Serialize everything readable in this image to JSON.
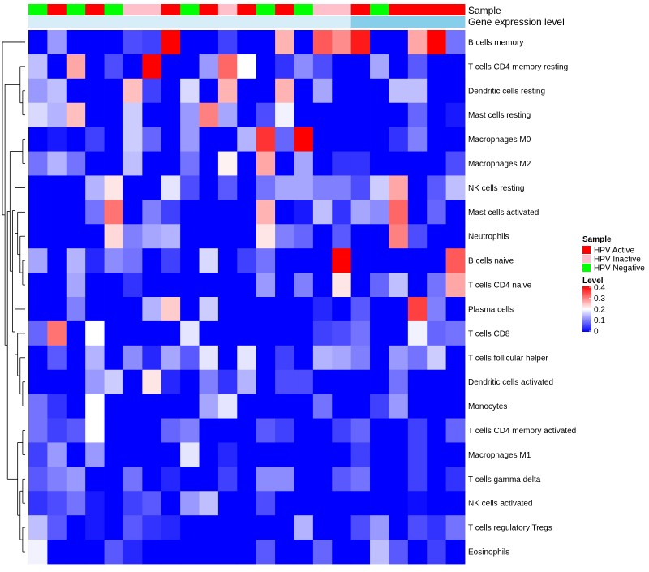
{
  "chart_data": {
    "type": "heatmap",
    "title": "",
    "annotation_labels": {
      "sample": "Sample",
      "gene": "Gene expression level"
    },
    "rows": [
      "B cells memory",
      "T cells CD4 memory resting",
      "Dendritic cells resting",
      "Mast cells resting",
      "Macrophages M0",
      "Macrophages M2",
      "NK cells resting",
      "Mast cells activated",
      "Neutrophils",
      "B cells naive",
      "T cells CD4 naive",
      "Plasma cells",
      "T cells CD8",
      "T cells follicular helper",
      "Dendritic cells activated",
      "Monocytes",
      "T cells CD4 memory activated",
      "Macrophages M1",
      "T cells gamma delta",
      "NK cells activated",
      "T cells regulatory  Tregs",
      "Eosinophils"
    ],
    "sample_groups": [
      "HPV Negative",
      "HPV Active",
      "HPV Negative",
      "HPV Active",
      "HPV Negative",
      "HPV Inactive",
      "HPV Inactive",
      "HPV Active",
      "HPV Negative",
      "HPV Active",
      "HPV Inactive",
      "HPV Active",
      "HPV Negative",
      "HPV Active",
      "HPV Negative",
      "HPV Inactive",
      "HPV Inactive",
      "HPV Active",
      "HPV Negative",
      "HPV Active",
      "HPV Active",
      "HPV Active",
      "HPV Active"
    ],
    "gene_expression_level": [
      0,
      0,
      0,
      0,
      0,
      0,
      0,
      0,
      0,
      0,
      0,
      0,
      0,
      0,
      0,
      0,
      0,
      1,
      1,
      1,
      1,
      1,
      1
    ],
    "legend": {
      "sample_title": "Sample",
      "sample_entries": [
        {
          "label": "HPV Active",
          "color": "#ff0000"
        },
        {
          "label": "HPV Inactive",
          "color": "#ffc0cb"
        },
        {
          "label": "HPV Negative",
          "color": "#00ff00"
        }
      ],
      "level_title": "Level",
      "level_ticks": [
        "0.4",
        "0.3",
        "0.2",
        "0.1",
        "0"
      ],
      "level_tick_values": [
        0.4,
        0.3,
        0.2,
        0.1,
        0
      ]
    },
    "color_scale": {
      "low": "#0000ff",
      "mid": "#ffffff",
      "high": "#ff0000",
      "min": 0,
      "mid_value": 0.2,
      "max": 0.4
    },
    "gene_colors": {
      "low": "#d7eef8",
      "high": "#87ceeb"
    },
    "values": [
      [
        0,
        0.12,
        0,
        0,
        0,
        0.06,
        0.05,
        0.4,
        0,
        0,
        0.05,
        0,
        0,
        0.26,
        0,
        0.33,
        0.29,
        0.38,
        0,
        0,
        0.27,
        0.4,
        0.09
      ],
      [
        0.15,
        0,
        0.27,
        0,
        0.06,
        0,
        0.4,
        0,
        0,
        0.12,
        0.32,
        0.2,
        0,
        0.04,
        0.11,
        0.06,
        0,
        0,
        0.13,
        0,
        0.07,
        0,
        0
      ],
      [
        0.12,
        0.15,
        0,
        0,
        0,
        0.25,
        0.05,
        0,
        0.17,
        0,
        0.26,
        0,
        0,
        0.26,
        0,
        0.13,
        0,
        0,
        0,
        0.15,
        0.15,
        0,
        0
      ],
      [
        0.17,
        0.14,
        0.25,
        0,
        0,
        0.16,
        0,
        0,
        0.12,
        0.3,
        0.13,
        0,
        0.06,
        0.19,
        0,
        0,
        0,
        0,
        0,
        0,
        0.08,
        0,
        0.02
      ],
      [
        0,
        0.02,
        0,
        0.05,
        0,
        0.16,
        0.08,
        0,
        0.12,
        0,
        0,
        0.14,
        0.36,
        0.08,
        0.4,
        0,
        0,
        0,
        0,
        0.04,
        0.1,
        0,
        0
      ],
      [
        0.09,
        0.14,
        0.09,
        0,
        0,
        0.15,
        0,
        0,
        0.09,
        0,
        0.21,
        0,
        0.27,
        0,
        0.13,
        0,
        0.04,
        0.04,
        0,
        0,
        0,
        0,
        0.06
      ],
      [
        0,
        0,
        0,
        0.14,
        0.22,
        0,
        0,
        0.18,
        0.06,
        0,
        0.07,
        0,
        0.09,
        0.13,
        0.13,
        0.1,
        0.1,
        0.06,
        0.16,
        0.27,
        0,
        0.07,
        0.15
      ],
      [
        0,
        0,
        0,
        0.09,
        0.31,
        0,
        0.1,
        0.05,
        0,
        0,
        0,
        0,
        0.26,
        0,
        0.02,
        0.15,
        0.04,
        0.13,
        0.11,
        0.32,
        0,
        0.08,
        0
      ],
      [
        0,
        0,
        0,
        0,
        0.23,
        0.1,
        0.13,
        0.14,
        0,
        0,
        0,
        0,
        0.22,
        0.1,
        0.08,
        0,
        0.07,
        0,
        0,
        0.3,
        0.06,
        0,
        0
      ],
      [
        0.13,
        0,
        0.14,
        0.03,
        0.11,
        0.09,
        0,
        0.05,
        0,
        0.17,
        0,
        0.05,
        0.09,
        0,
        0,
        0,
        0.4,
        0,
        0,
        0,
        0,
        0,
        0.33
      ],
      [
        0,
        0,
        0.13,
        0,
        0,
        0.04,
        0,
        0,
        0,
        0,
        0,
        0,
        0.12,
        0,
        0.1,
        0,
        0.22,
        0,
        0.08,
        0.15,
        0,
        0.09,
        0.27
      ],
      [
        0,
        0,
        0.1,
        0,
        0,
        0,
        0.14,
        0.24,
        0,
        0.16,
        0,
        0,
        0,
        0,
        0,
        0.03,
        0,
        0.07,
        0,
        0,
        0.35,
        0.1,
        0
      ],
      [
        0.08,
        0.31,
        0,
        0.2,
        0,
        0,
        0,
        0,
        0.18,
        0,
        0,
        0,
        0,
        0,
        0,
        0.05,
        0.06,
        0.09,
        0,
        0,
        0.19,
        0.08,
        0.09
      ],
      [
        0,
        0.07,
        0,
        0.14,
        0,
        0.11,
        0.03,
        0.13,
        0.07,
        0.18,
        0,
        0.18,
        0,
        0.05,
        0,
        0.14,
        0.13,
        0.1,
        0,
        0.12,
        0.09,
        0.16,
        0
      ],
      [
        0,
        0,
        0,
        0.12,
        0.16,
        0,
        0.22,
        0.03,
        0,
        0.1,
        0.04,
        0.14,
        0,
        0.06,
        0.06,
        0,
        0,
        0,
        0,
        0.09,
        0,
        0,
        0
      ],
      [
        0.09,
        0.04,
        0,
        0.2,
        0,
        0,
        0,
        0,
        0,
        0.13,
        0.18,
        0,
        0,
        0,
        0,
        0.09,
        0,
        0,
        0.05,
        0.12,
        0,
        0,
        0
      ],
      [
        0.09,
        0.05,
        0.07,
        0.2,
        0,
        0,
        0,
        0.08,
        0.1,
        0,
        0,
        0,
        0.07,
        0.05,
        0,
        0,
        0.05,
        0.08,
        0,
        0,
        0.05,
        0,
        0.08
      ],
      [
        0.05,
        0.12,
        0,
        0.12,
        0,
        0,
        0,
        0,
        0.18,
        0,
        0.03,
        0,
        0,
        0,
        0,
        0,
        0,
        0.05,
        0,
        0,
        0.05,
        0,
        0
      ],
      [
        0.07,
        0.1,
        0.12,
        0,
        0,
        0.09,
        0,
        0.03,
        0,
        0,
        0.05,
        0,
        0.11,
        0.11,
        0,
        0,
        0.07,
        0.09,
        0,
        0,
        0.05,
        0,
        0.04
      ],
      [
        0.04,
        0.06,
        0.09,
        0.02,
        0,
        0.05,
        0.07,
        0,
        0.12,
        0.15,
        0,
        0,
        0.06,
        0,
        0,
        0,
        0,
        0,
        0,
        0,
        0.01,
        0,
        0
      ],
      [
        0.15,
        0.07,
        0,
        0.02,
        0,
        0.07,
        0.04,
        0.03,
        0,
        0,
        0,
        0,
        0,
        0,
        0.14,
        0,
        0,
        0.06,
        0.12,
        0,
        0.06,
        0.04,
        0.09
      ],
      [
        0.19,
        0,
        0,
        0,
        0.07,
        0.03,
        0,
        0,
        0,
        0,
        0,
        0,
        0.07,
        0,
        0,
        0.08,
        0,
        0,
        0.15,
        0.07,
        0,
        0.05,
        0
      ]
    ],
    "row_dendrogram": "[0,[[1,[2,3]],[[[4,5],[[6,[7,[8,[9,10]]]],[11,[12,[13,[14,15]]]]]],[[16,17],[[18,19],[20,21]]]]]]"
  }
}
